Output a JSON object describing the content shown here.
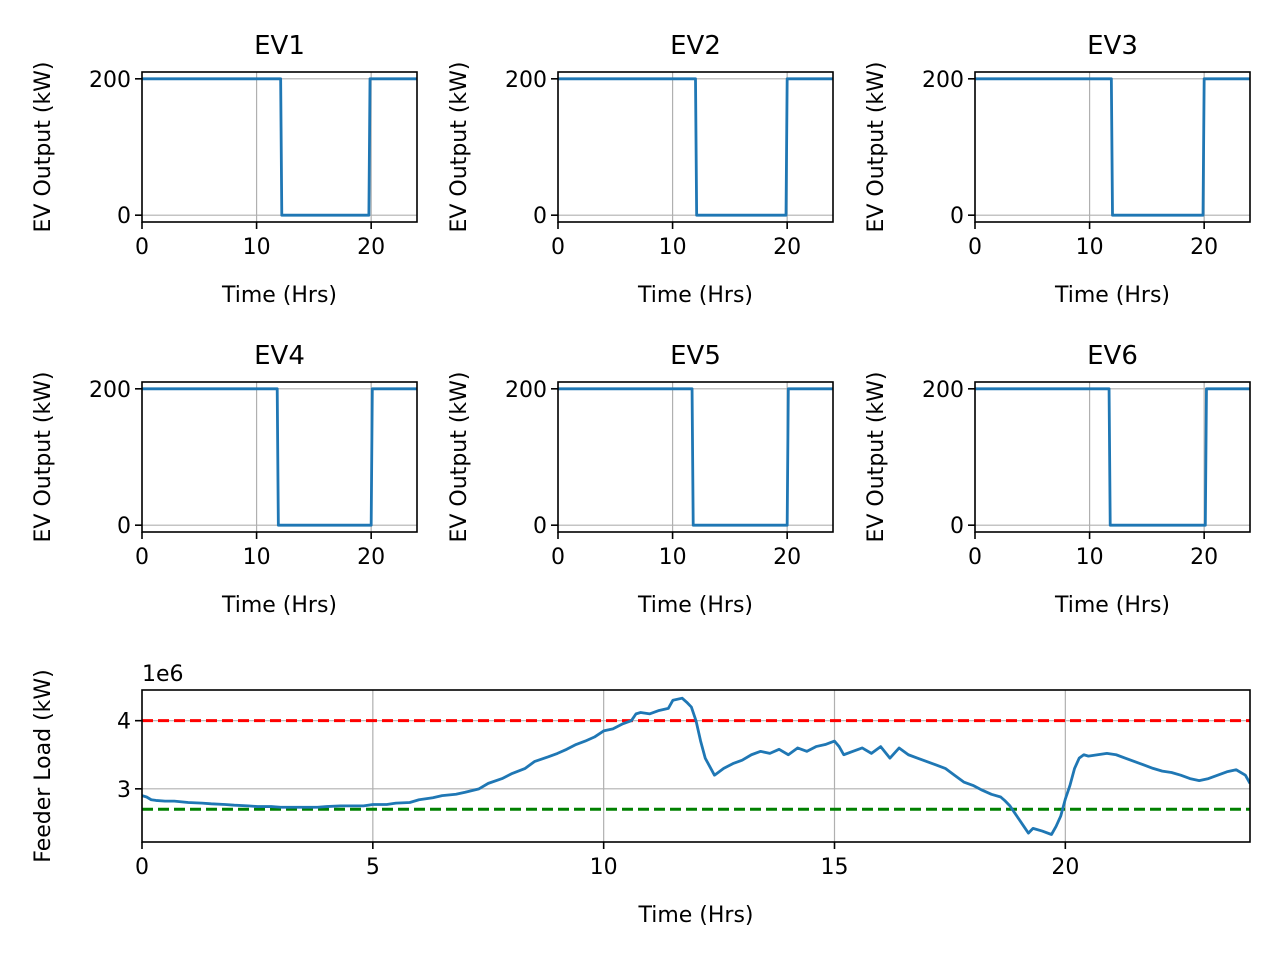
{
  "chart_data": [
    {
      "type": "line",
      "title": "EV1",
      "xlabel": "Time (Hrs)",
      "ylabel": "EV Output (kW)",
      "xlim": [
        0,
        24
      ],
      "ylim": [
        -10,
        210
      ],
      "xticks": [
        0,
        10,
        20
      ],
      "yticks": [
        0,
        200
      ],
      "grid": true,
      "color": "#1f77b4",
      "series": [
        {
          "x": [
            0,
            12.1,
            12.2,
            19.8,
            19.9,
            24
          ],
          "y": [
            200,
            200,
            0,
            0,
            200,
            200
          ]
        }
      ]
    },
    {
      "type": "line",
      "title": "EV2",
      "xlabel": "Time (Hrs)",
      "ylabel": "EV Output (kW)",
      "xlim": [
        0,
        24
      ],
      "ylim": [
        -10,
        210
      ],
      "xticks": [
        0,
        10,
        20
      ],
      "yticks": [
        0,
        200
      ],
      "grid": true,
      "color": "#1f77b4",
      "series": [
        {
          "x": [
            0,
            12.0,
            12.1,
            19.9,
            20.0,
            24
          ],
          "y": [
            200,
            200,
            0,
            0,
            200,
            200
          ]
        }
      ]
    },
    {
      "type": "line",
      "title": "EV3",
      "xlabel": "Time (Hrs)",
      "ylabel": "EV Output (kW)",
      "xlim": [
        0,
        24
      ],
      "ylim": [
        -10,
        210
      ],
      "xticks": [
        0,
        10,
        20
      ],
      "yticks": [
        0,
        200
      ],
      "grid": true,
      "color": "#1f77b4",
      "series": [
        {
          "x": [
            0,
            11.9,
            12.0,
            19.9,
            20.0,
            24
          ],
          "y": [
            200,
            200,
            0,
            0,
            200,
            200
          ]
        }
      ]
    },
    {
      "type": "line",
      "title": "EV4",
      "xlabel": "Time (Hrs)",
      "ylabel": "EV Output (kW)",
      "xlim": [
        0,
        24
      ],
      "ylim": [
        -10,
        210
      ],
      "xticks": [
        0,
        10,
        20
      ],
      "yticks": [
        0,
        200
      ],
      "grid": true,
      "color": "#1f77b4",
      "series": [
        {
          "x": [
            0,
            11.8,
            11.9,
            20.0,
            20.1,
            24
          ],
          "y": [
            200,
            200,
            0,
            0,
            200,
            200
          ]
        }
      ]
    },
    {
      "type": "line",
      "title": "EV5",
      "xlabel": "Time (Hrs)",
      "ylabel": "EV Output (kW)",
      "xlim": [
        0,
        24
      ],
      "ylim": [
        -10,
        210
      ],
      "xticks": [
        0,
        10,
        20
      ],
      "yticks": [
        0,
        200
      ],
      "grid": true,
      "color": "#1f77b4",
      "series": [
        {
          "x": [
            0,
            11.7,
            11.8,
            20.0,
            20.1,
            24
          ],
          "y": [
            200,
            200,
            0,
            0,
            200,
            200
          ]
        }
      ]
    },
    {
      "type": "line",
      "title": "EV6",
      "xlabel": "Time (Hrs)",
      "ylabel": "EV Output (kW)",
      "xlim": [
        0,
        24
      ],
      "ylim": [
        -10,
        210
      ],
      "xticks": [
        0,
        10,
        20
      ],
      "yticks": [
        0,
        200
      ],
      "grid": true,
      "color": "#1f77b4",
      "series": [
        {
          "x": [
            0,
            11.7,
            11.8,
            20.1,
            20.2,
            24
          ],
          "y": [
            200,
            200,
            0,
            0,
            200,
            200
          ]
        }
      ]
    },
    {
      "type": "line",
      "title": "",
      "xlabel": "Time (Hrs)",
      "ylabel": "Feeder Load (kW)",
      "offset_text": "1e6",
      "xlim": [
        0,
        24
      ],
      "ylim": [
        2.22,
        4.45
      ],
      "xticks": [
        0,
        5,
        10,
        15,
        20
      ],
      "yticks": [
        3,
        4
      ],
      "grid": true,
      "color": "#1f77b4",
      "series": [
        {
          "x": [
            0,
            0.1,
            0.2,
            0.3,
            0.5,
            0.7,
            1.0,
            1.3,
            1.5,
            1.8,
            2.0,
            2.3,
            2.5,
            2.8,
            3.0,
            3.3,
            3.5,
            3.8,
            4.0,
            4.3,
            4.5,
            4.8,
            5.0,
            5.3,
            5.5,
            5.8,
            6.0,
            6.3,
            6.5,
            6.8,
            7.0,
            7.3,
            7.5,
            7.8,
            8.0,
            8.3,
            8.5,
            8.8,
            9.0,
            9.2,
            9.4,
            9.6,
            9.8,
            10.0,
            10.2,
            10.4,
            10.6,
            10.7,
            10.8,
            11.0,
            11.2,
            11.4,
            11.5,
            11.7,
            11.8,
            11.9,
            12.0,
            12.1,
            12.2,
            12.4,
            12.6,
            12.8,
            13.0,
            13.2,
            13.4,
            13.6,
            13.8,
            14.0,
            14.2,
            14.4,
            14.6,
            14.8,
            15.0,
            15.1,
            15.2,
            15.4,
            15.6,
            15.8,
            16.0,
            16.2,
            16.4,
            16.6,
            16.8,
            17.0,
            17.2,
            17.4,
            17.6,
            17.8,
            18.0,
            18.2,
            18.4,
            18.6,
            18.7,
            18.8,
            18.9,
            19.0,
            19.1,
            19.2,
            19.3,
            19.5,
            19.7,
            19.8,
            19.9,
            20.0,
            20.1,
            20.2,
            20.3,
            20.4,
            20.5,
            20.7,
            20.9,
            21.1,
            21.3,
            21.5,
            21.7,
            21.9,
            22.1,
            22.3,
            22.5,
            22.7,
            22.9,
            23.1,
            23.3,
            23.5,
            23.7,
            23.9,
            24
          ],
          "y": [
            2.9,
            2.88,
            2.84,
            2.83,
            2.82,
            2.82,
            2.8,
            2.79,
            2.78,
            2.77,
            2.76,
            2.75,
            2.74,
            2.74,
            2.73,
            2.73,
            2.73,
            2.73,
            2.74,
            2.75,
            2.75,
            2.75,
            2.77,
            2.77,
            2.79,
            2.8,
            2.84,
            2.87,
            2.9,
            2.92,
            2.95,
            3.0,
            3.08,
            3.15,
            3.22,
            3.3,
            3.4,
            3.47,
            3.52,
            3.58,
            3.65,
            3.7,
            3.76,
            3.85,
            3.88,
            3.95,
            4.0,
            4.1,
            4.12,
            4.1,
            4.15,
            4.18,
            4.3,
            4.33,
            4.27,
            4.2,
            4.0,
            3.7,
            3.45,
            3.2,
            3.3,
            3.37,
            3.42,
            3.5,
            3.55,
            3.52,
            3.58,
            3.5,
            3.6,
            3.55,
            3.62,
            3.65,
            3.7,
            3.62,
            3.5,
            3.55,
            3.6,
            3.52,
            3.62,
            3.45,
            3.6,
            3.5,
            3.45,
            3.4,
            3.35,
            3.3,
            3.2,
            3.1,
            3.05,
            2.98,
            2.92,
            2.88,
            2.82,
            2.75,
            2.65,
            2.55,
            2.45,
            2.35,
            2.42,
            2.38,
            2.33,
            2.45,
            2.6,
            2.85,
            3.05,
            3.3,
            3.45,
            3.5,
            3.48,
            3.5,
            3.52,
            3.5,
            3.45,
            3.4,
            3.35,
            3.3,
            3.26,
            3.24,
            3.2,
            3.15,
            3.12,
            3.15,
            3.2,
            3.25,
            3.28,
            3.2,
            3.08
          ]
        }
      ],
      "reference_lines": [
        {
          "y": 4.0,
          "color": "#ff0000",
          "style": "dashed"
        },
        {
          "y": 2.7,
          "color": "#008000",
          "style": "dashed"
        }
      ]
    }
  ]
}
